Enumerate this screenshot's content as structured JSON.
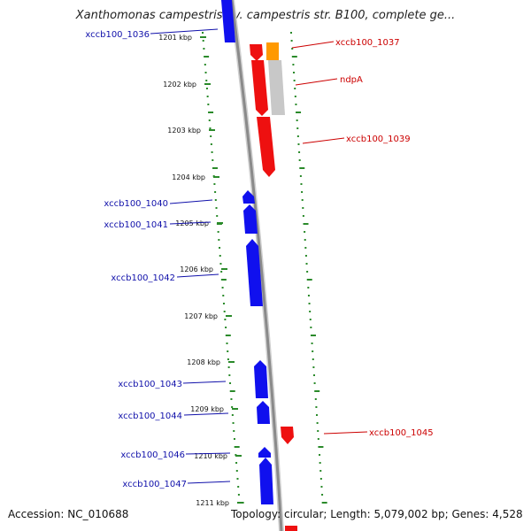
{
  "title": "Xanthomonas campestris pv. campestris str. B100, complete ge...",
  "footer": {
    "accession": "Accession: NC_010688",
    "summary": "Topology: circular; Length: 5,079,002 bp; Genes: 4,528"
  },
  "colors": {
    "reverse_strand": "#1010ee",
    "forward_strand": "#ee1010",
    "pseudo_gene": "#c8c8c8",
    "rna_gene": "#ff9900",
    "backbone": "#8a8a8a",
    "gc_ruler": "#2a8a2a",
    "label_reverse": "#1010aa",
    "label_forward": "#cc0000"
  },
  "ticks": [
    "1201 kbp",
    "1202 kbp",
    "1203 kbp",
    "1204 kbp",
    "1205 kbp",
    "1206 kbp",
    "1207 kbp",
    "1208 kbp",
    "1209 kbp",
    "1210 kbp",
    "1211 kbp"
  ],
  "genes_reverse": [
    "xccb100_1036",
    "xccb100_1040",
    "xccb100_1041",
    "xccb100_1042",
    "xccb100_1043",
    "xccb100_1044",
    "xccb100_1046",
    "xccb100_1047"
  ],
  "genes_forward": [
    "xccb100_1037",
    "ndpA",
    "xccb100_1039",
    "xccb100_1045"
  ]
}
